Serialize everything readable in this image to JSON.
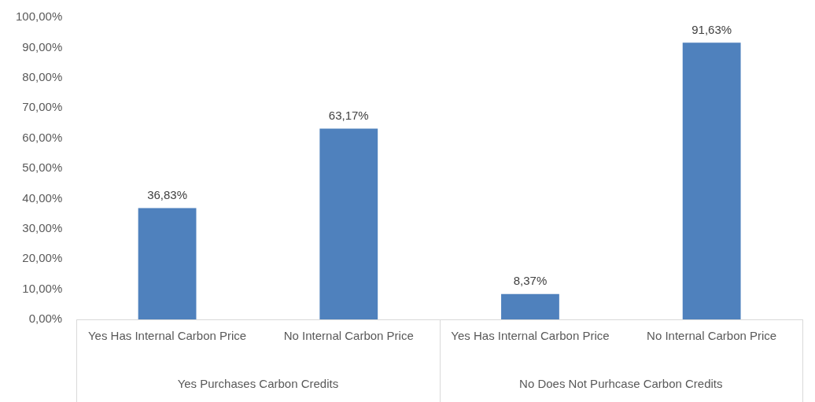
{
  "chart_data": {
    "type": "bar",
    "categories": [
      "Yes Has Internal Carbon Price",
      "No Internal Carbon Price",
      "Yes Has Internal Carbon Price",
      "No Internal Carbon Price"
    ],
    "values": [
      36.83,
      63.17,
      8.37,
      91.63
    ],
    "value_labels": [
      "36,83%",
      "63,17%",
      "8,37%",
      "91,63%"
    ],
    "color": "#4f81bd",
    "annotations": [
      "Yes Purchases Carbon Credits",
      "No Does Not Purhcase Carbon Credits"
    ],
    "ylim": [
      0,
      100
    ],
    "yticks": [
      {
        "value": 0,
        "label": "0,00%"
      },
      {
        "value": 10,
        "label": "10,00%"
      },
      {
        "value": 20,
        "label": "20,00%"
      },
      {
        "value": 30,
        "label": "30,00%"
      },
      {
        "value": 40,
        "label": "40,00%"
      },
      {
        "value": 50,
        "label": "50,00%"
      },
      {
        "value": 60,
        "label": "60,00%"
      },
      {
        "value": 70,
        "label": "70,00%"
      },
      {
        "value": 80,
        "label": "80,00%"
      },
      {
        "value": 90,
        "label": "90,00%"
      },
      {
        "value": 100,
        "label": "100,00%"
      }
    ],
    "grid": false,
    "legend": false
  }
}
